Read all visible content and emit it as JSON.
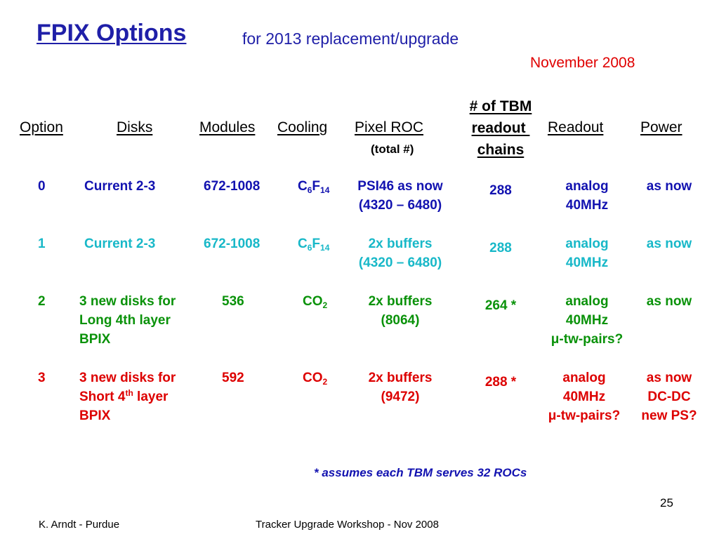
{
  "slide": {
    "title": "FPIX Options",
    "subtitle": "for 2013 replacement/upgrade",
    "date": "November 2008",
    "footnote": "* assumes each TBM serves 32 ROCs",
    "page_number": "25",
    "footer_left": "K. Arndt - Purdue",
    "footer_center": "Tracker Upgrade Workshop - Nov 2008"
  },
  "headers": {
    "option": "Option",
    "disks": "Disks",
    "modules": "Modules",
    "cooling": "Cooling",
    "pixel_roc": "Pixel ROC",
    "pixel_roc_sub": "(total #)",
    "tbm_line1": "# of TBM",
    "tbm_line2": "readout ",
    "tbm_line3": "chains",
    "readout": "Readout",
    "power": "Power"
  },
  "rows": [
    {
      "color": "#1212b0",
      "option": "0",
      "disks": [
        "Current 2-3"
      ],
      "modules": "672-1008",
      "cooling": {
        "base": "C",
        "sub1": "6",
        "mid": "F",
        "sub2": "14"
      },
      "pixel_roc": [
        "PSI46 as now",
        "(4320 – 6480)"
      ],
      "tbm": "288",
      "readout": [
        "analog",
        "40MHz"
      ],
      "power": [
        "as now"
      ]
    },
    {
      "color": "#18b8c8",
      "option": "1",
      "disks": [
        "Current 2-3"
      ],
      "modules": "672-1008",
      "cooling": {
        "base": "C",
        "sub1": "6",
        "mid": "F",
        "sub2": "14"
      },
      "pixel_roc": [
        "2x buffers",
        "(4320 – 6480)"
      ],
      "tbm": "288",
      "readout": [
        "analog",
        "40MHz"
      ],
      "power": [
        "as now"
      ]
    },
    {
      "color": "#0a920a",
      "option": "2",
      "disks": [
        "3 new disks for",
        "Long 4th layer",
        "BPIX"
      ],
      "modules": "536",
      "cooling": {
        "base": "CO",
        "sub1": "2"
      },
      "pixel_roc": [
        "2x buffers",
        "(8064)"
      ],
      "tbm": "264 *",
      "readout": [
        "analog",
        "40MHz",
        "μ-tw-pairs?"
      ],
      "power": [
        "as now"
      ]
    },
    {
      "color": "#dd0000",
      "option": "3",
      "disks": [
        "3 new disks for",
        "Short 4",
        "th",
        " layer",
        "BPIX"
      ],
      "modules": "592",
      "cooling": {
        "base": "CO",
        "sub1": "2"
      },
      "pixel_roc": [
        "2x buffers",
        "(9472)"
      ],
      "tbm": "288 *",
      "readout": [
        "analog",
        "40MHz",
        "μ-tw-pairs?"
      ],
      "power": [
        "as now",
        "DC-DC",
        "new PS?"
      ]
    }
  ]
}
